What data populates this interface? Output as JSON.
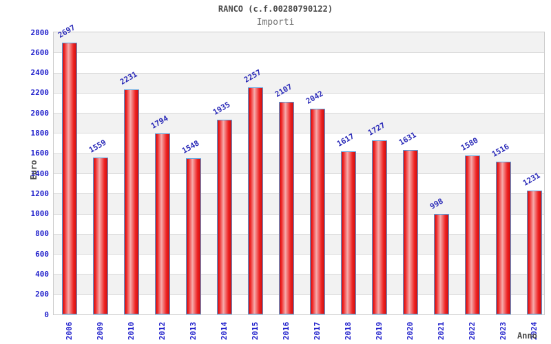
{
  "chart_data": {
    "type": "bar",
    "title": "RANCO (c.f.00280790122)",
    "subtitle": "Importi",
    "xlabel": "Anno",
    "ylabel": "Euro",
    "categories": [
      "2006",
      "2009",
      "2010",
      "2012",
      "2013",
      "2014",
      "2015",
      "2016",
      "2017",
      "2018",
      "2019",
      "2020",
      "2021",
      "2022",
      "2023",
      "2024"
    ],
    "values": [
      2697,
      1559,
      2231,
      1794,
      1548,
      1935,
      2257,
      2107,
      2042,
      1617,
      1727,
      1631,
      998,
      1580,
      1516,
      1231
    ],
    "ylim": [
      0,
      2800
    ],
    "ytick_step": 200,
    "legend": "none",
    "grid": "horizontal-bands",
    "value_labels": "above-bars-rotated",
    "colors": {
      "tick_text": "#2222cc",
      "value_text": "#2a2ab8",
      "bar_edge": "#cb1010",
      "bar_mid": "#ee2222",
      "bar_highlight": "#f6abab",
      "bar_border": "#55a0e0",
      "band_gray": "#f2f2f2",
      "band_white": "#ffffff",
      "gridline": "#d9d9d9",
      "axis_title_text": "#4a4a4a",
      "title_text": "#4a4a4a",
      "subtitle_text": "#707070"
    }
  }
}
